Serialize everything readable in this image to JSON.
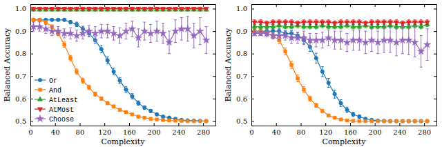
{
  "chart_data": [
    {
      "type": "line",
      "x_label": "Complexity",
      "y_label": "Balanced Accuracy",
      "x": [
        5,
        15,
        25,
        35,
        45,
        55,
        65,
        75,
        85,
        95,
        105,
        115,
        125,
        135,
        145,
        155,
        165,
        175,
        185,
        195,
        205,
        215,
        225,
        235,
        245,
        255,
        265,
        275,
        285
      ],
      "xlim": [
        0,
        300
      ],
      "xticks": [
        0,
        40,
        80,
        120,
        160,
        200,
        240,
        280
      ],
      "ylim": [
        0.48,
        1.02
      ],
      "yticks": [
        0.5,
        0.6,
        0.7,
        0.8,
        0.9,
        {
          "value": 1,
          "label": "1.0"
        }
      ],
      "legend": "lower left",
      "series": [
        {
          "name": "Or",
          "color": "#1f77b4",
          "marker": "circle",
          "values": [
            0.95,
            0.95,
            0.95,
            0.95,
            0.95,
            0.95,
            0.94,
            0.93,
            0.91,
            0.89,
            0.86,
            0.82,
            0.77,
            0.72,
            0.68,
            0.64,
            0.61,
            0.58,
            0.56,
            0.545,
            0.53,
            0.52,
            0.515,
            0.51,
            0.505,
            0.503,
            0.502,
            0.501,
            0.5
          ],
          "errors": [
            0.005,
            0.005,
            0.005,
            0.005,
            0.005,
            0.006,
            0.008,
            0.01,
            0.012,
            0.014,
            0.015,
            0.016,
            0.016,
            0.015,
            0.014,
            0.013,
            0.012,
            0.01,
            0.008,
            0.007,
            0.006,
            0.005,
            0.004,
            0.003,
            0.003,
            0.002,
            0.002,
            0.002,
            0.001
          ]
        },
        {
          "name": "And",
          "color": "#ff7f0e",
          "marker": "square",
          "values": [
            0.95,
            0.95,
            0.94,
            0.92,
            0.89,
            0.84,
            0.78,
            0.72,
            0.68,
            0.65,
            0.62,
            0.6,
            0.58,
            0.565,
            0.55,
            0.54,
            0.53,
            0.52,
            0.515,
            0.51,
            0.507,
            0.505,
            0.503,
            0.502,
            0.501,
            0.5,
            0.5,
            0.5,
            0.5
          ],
          "errors": [
            0.004,
            0.005,
            0.006,
            0.008,
            0.01,
            0.012,
            0.012,
            0.012,
            0.011,
            0.01,
            0.009,
            0.008,
            0.007,
            0.006,
            0.005,
            0.005,
            0.004,
            0.004,
            0.003,
            0.003,
            0.002,
            0.002,
            0.002,
            0.001,
            0.001,
            0.001,
            0.001,
            0.001,
            0.001
          ]
        },
        {
          "name": "AtLeast",
          "color": "#2ca02c",
          "marker": "triangle-up",
          "values": [
            0.995,
            0.995,
            0.995,
            0.995,
            0.995,
            0.995,
            0.995,
            0.995,
            0.995,
            0.995,
            0.995,
            0.995,
            0.995,
            0.995,
            0.995,
            0.995,
            0.995,
            0.995,
            0.995,
            0.995,
            0.995,
            0.995,
            0.995,
            0.995,
            0.995,
            0.995,
            0.995,
            0.995,
            0.995
          ],
          "errors": [
            0.003,
            0.003,
            0.003,
            0.003,
            0.003,
            0.003,
            0.003,
            0.003,
            0.003,
            0.003,
            0.003,
            0.003,
            0.003,
            0.003,
            0.003,
            0.003,
            0.003,
            0.003,
            0.003,
            0.003,
            0.003,
            0.003,
            0.003,
            0.003,
            0.003,
            0.003,
            0.003,
            0.003,
            0.003
          ]
        },
        {
          "name": "AtMost",
          "color": "#d62728",
          "marker": "triangle-down",
          "values": [
            1,
            1,
            1,
            1,
            1,
            1,
            1,
            1,
            1,
            1,
            1,
            1,
            1,
            1,
            1,
            1,
            1,
            1,
            1,
            1,
            1,
            1,
            1,
            1,
            1,
            1,
            1,
            1,
            1
          ],
          "errors": [
            0.002,
            0.002,
            0.002,
            0.002,
            0.002,
            0.002,
            0.002,
            0.002,
            0.002,
            0.002,
            0.002,
            0.002,
            0.002,
            0.002,
            0.002,
            0.002,
            0.002,
            0.002,
            0.002,
            0.002,
            0.002,
            0.002,
            0.002,
            0.002,
            0.002,
            0.002,
            0.002,
            0.002,
            0.002
          ]
        },
        {
          "name": "Choose",
          "color": "#9467bd",
          "marker": "star",
          "values": [
            0.92,
            0.92,
            0.91,
            0.9,
            0.9,
            0.89,
            0.89,
            0.88,
            0.89,
            0.9,
            0.89,
            0.9,
            0.9,
            0.89,
            0.88,
            0.9,
            0.91,
            0.87,
            0.9,
            0.89,
            0.9,
            0.89,
            0.85,
            0.9,
            0.91,
            0.91,
            0.88,
            0.9,
            0.86
          ],
          "errors": [
            0.02,
            0.02,
            0.02,
            0.02,
            0.02,
            0.02,
            0.025,
            0.025,
            0.025,
            0.025,
            0.03,
            0.03,
            0.03,
            0.03,
            0.035,
            0.035,
            0.035,
            0.04,
            0.04,
            0.04,
            0.045,
            0.045,
            0.05,
            0.05,
            0.05,
            0.055,
            0.055,
            0.06,
            0.06
          ]
        }
      ]
    },
    {
      "type": "line",
      "x_label": "Complexity",
      "y_label": "Balanced Accuracy",
      "x": [
        5,
        15,
        25,
        35,
        45,
        55,
        65,
        75,
        85,
        95,
        105,
        115,
        125,
        135,
        145,
        155,
        165,
        175,
        185,
        195,
        205,
        215,
        225,
        235,
        245,
        255,
        265,
        275,
        285
      ],
      "xlim": [
        0,
        300
      ],
      "xticks": [
        0,
        40,
        80,
        120,
        160,
        200,
        240,
        280
      ],
      "ylim": [
        0.48,
        1.02
      ],
      "yticks": [
        0.5,
        0.6,
        0.7,
        0.8,
        0.9,
        {
          "value": 1,
          "label": "1.0"
        }
      ],
      "series": [
        {
          "color": "#1f77b4",
          "marker": "circle",
          "values": [
            0.9,
            0.9,
            0.9,
            0.9,
            0.9,
            0.89,
            0.89,
            0.88,
            0.86,
            0.83,
            0.78,
            0.72,
            0.67,
            0.62,
            0.58,
            0.55,
            0.53,
            0.52,
            0.51,
            0.505,
            0.502,
            0.501,
            0.5,
            0.5,
            0.5,
            0.5,
            0.5,
            0.5,
            0.5
          ],
          "errors": [
            0.01,
            0.01,
            0.01,
            0.01,
            0.01,
            0.012,
            0.012,
            0.014,
            0.016,
            0.02,
            0.022,
            0.022,
            0.02,
            0.018,
            0.015,
            0.012,
            0.01,
            0.008,
            0.006,
            0.004,
            0.003,
            0.002,
            0.002,
            0.001,
            0.001,
            0.001,
            0.001,
            0.001,
            0.001
          ]
        },
        {
          "color": "#ff7f0e",
          "marker": "square",
          "values": [
            0.9,
            0.9,
            0.89,
            0.88,
            0.86,
            0.81,
            0.75,
            0.69,
            0.64,
            0.6,
            0.57,
            0.545,
            0.525,
            0.515,
            0.507,
            0.503,
            0.501,
            0.5,
            0.5,
            0.5,
            0.5,
            0.5,
            0.5,
            0.5,
            0.5,
            0.5,
            0.5,
            0.5,
            0.5
          ],
          "errors": [
            0.01,
            0.01,
            0.01,
            0.012,
            0.014,
            0.016,
            0.016,
            0.015,
            0.013,
            0.011,
            0.009,
            0.007,
            0.005,
            0.004,
            0.003,
            0.002,
            0.001,
            0.001,
            0.001,
            0.001,
            0.001,
            0.001,
            0.001,
            0.001,
            0.001,
            0.001,
            0.001,
            0.001,
            0.001
          ]
        },
        {
          "color": "#2ca02c",
          "marker": "triangle-up",
          "values": [
            0.92,
            0.92,
            0.92,
            0.92,
            0.925,
            0.92,
            0.92,
            0.925,
            0.92,
            0.92,
            0.92,
            0.925,
            0.92,
            0.92,
            0.92,
            0.925,
            0.92,
            0.92,
            0.925,
            0.92,
            0.92,
            0.92,
            0.925,
            0.92,
            0.92,
            0.92,
            0.925,
            0.92,
            0.93
          ],
          "errors": [
            0.01,
            0.01,
            0.01,
            0.01,
            0.01,
            0.01,
            0.01,
            0.01,
            0.01,
            0.01,
            0.01,
            0.01,
            0.01,
            0.01,
            0.01,
            0.01,
            0.01,
            0.01,
            0.01,
            0.01,
            0.01,
            0.01,
            0.01,
            0.01,
            0.01,
            0.01,
            0.01,
            0.01,
            0.01
          ]
        },
        {
          "color": "#d62728",
          "marker": "triangle-down",
          "values": [
            0.94,
            0.94,
            0.935,
            0.94,
            0.94,
            0.94,
            0.94,
            0.935,
            0.94,
            0.94,
            0.94,
            0.94,
            0.94,
            0.935,
            0.94,
            0.94,
            0.94,
            0.94,
            0.935,
            0.94,
            0.94,
            0.94,
            0.94,
            0.94,
            0.935,
            0.94,
            0.94,
            0.94,
            0.94
          ],
          "errors": [
            0.01,
            0.01,
            0.01,
            0.01,
            0.01,
            0.01,
            0.01,
            0.01,
            0.01,
            0.01,
            0.01,
            0.01,
            0.01,
            0.01,
            0.01,
            0.01,
            0.01,
            0.01,
            0.01,
            0.01,
            0.01,
            0.01,
            0.01,
            0.01,
            0.01,
            0.01,
            0.01,
            0.01,
            0.01
          ]
        },
        {
          "color": "#9467bd",
          "marker": "star",
          "values": [
            0.89,
            0.89,
            0.89,
            0.88,
            0.88,
            0.88,
            0.87,
            0.87,
            0.87,
            0.86,
            0.86,
            0.86,
            0.87,
            0.86,
            0.86,
            0.85,
            0.86,
            0.86,
            0.85,
            0.86,
            0.85,
            0.86,
            0.86,
            0.85,
            0.86,
            0.86,
            0.85,
            0.81,
            0.84
          ],
          "errors": [
            0.01,
            0.01,
            0.015,
            0.015,
            0.02,
            0.02,
            0.025,
            0.025,
            0.03,
            0.03,
            0.03,
            0.035,
            0.035,
            0.04,
            0.04,
            0.04,
            0.045,
            0.045,
            0.05,
            0.05,
            0.05,
            0.055,
            0.055,
            0.06,
            0.06,
            0.065,
            0.065,
            0.07,
            0.07
          ]
        }
      ]
    }
  ]
}
